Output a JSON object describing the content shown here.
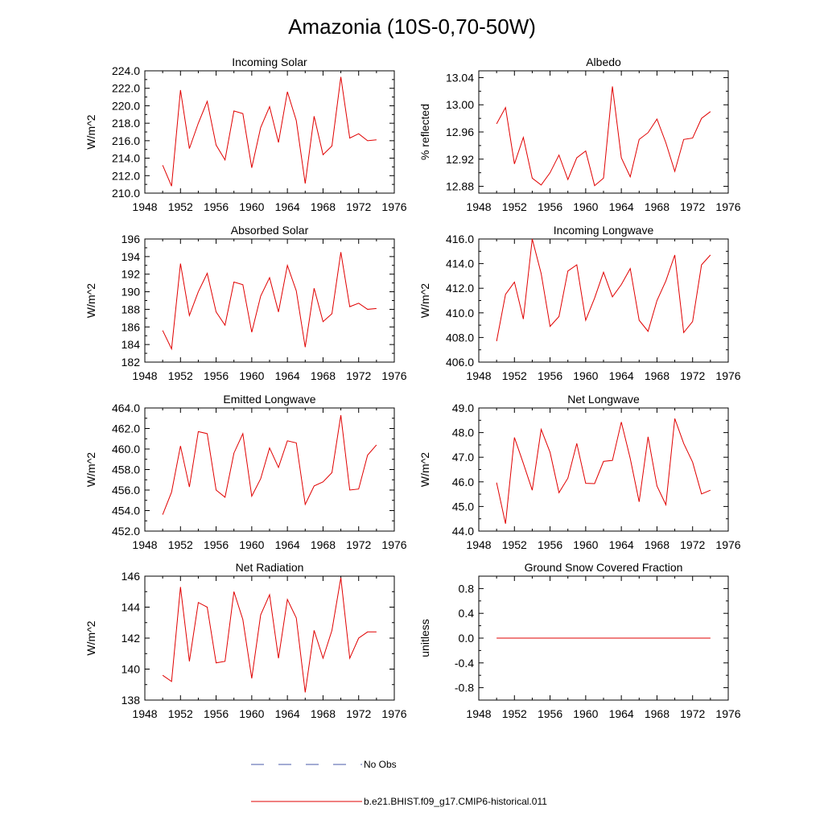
{
  "title": "Amazonia (10S-0,70-50W)",
  "legend": {
    "entries": [
      {
        "label": "No Obs",
        "color": "#4a5aa8",
        "style": "dashed"
      },
      {
        "label": "b.e21.BHIST.f09_g17.CMIP6-historical.011",
        "color": "#e00000",
        "style": "solid"
      }
    ]
  },
  "chart_data": [
    {
      "type": "line",
      "title": "Incoming Solar",
      "ylabel": "W/m^2",
      "xlim": [
        1948,
        1976
      ],
      "xticks": [
        1948,
        1952,
        1956,
        1960,
        1964,
        1968,
        1972,
        1976
      ],
      "ylim": [
        210.0,
        224.0
      ],
      "yticks": [
        "210.0",
        "212.0",
        "214.0",
        "216.0",
        "218.0",
        "220.0",
        "222.0",
        "224.0"
      ],
      "color": "#e00000",
      "x": [
        1950,
        1951,
        1952,
        1953,
        1954,
        1955,
        1956,
        1957,
        1958,
        1959,
        1960,
        1961,
        1962,
        1963,
        1964,
        1965,
        1966,
        1967,
        1968,
        1969,
        1970,
        1971,
        1972,
        1973,
        1974
      ],
      "y": [
        213.2,
        210.8,
        221.8,
        215.1,
        218.0,
        220.5,
        215.5,
        213.8,
        219.4,
        219.1,
        212.9,
        217.5,
        219.9,
        215.8,
        221.6,
        218.3,
        211.1,
        218.8,
        214.4,
        215.4,
        223.3,
        216.3,
        216.8,
        216.0,
        216.1
      ]
    },
    {
      "type": "line",
      "title": "Albedo",
      "ylabel": "% reflected",
      "xlim": [
        1948,
        1976
      ],
      "xticks": [
        1948,
        1952,
        1956,
        1960,
        1964,
        1968,
        1972,
        1976
      ],
      "ylim": [
        12.87,
        13.05
      ],
      "yticks": [
        "12.88",
        "12.92",
        "12.96",
        "13.00",
        "13.04"
      ],
      "color": "#e00000",
      "x": [
        1950,
        1951,
        1952,
        1953,
        1954,
        1955,
        1956,
        1957,
        1958,
        1959,
        1960,
        1961,
        1962,
        1963,
        1964,
        1965,
        1966,
        1967,
        1968,
        1969,
        1970,
        1971,
        1972,
        1973,
        1974
      ],
      "y": [
        12.972,
        12.996,
        12.913,
        12.952,
        12.892,
        12.882,
        12.9,
        12.926,
        12.89,
        12.922,
        12.932,
        12.881,
        12.892,
        13.027,
        12.922,
        12.894,
        12.949,
        12.959,
        12.979,
        12.944,
        12.902,
        12.949,
        12.951,
        12.98,
        12.99
      ]
    },
    {
      "type": "line",
      "title": "Absorbed Solar",
      "ylabel": "W/m^2",
      "xlim": [
        1948,
        1976
      ],
      "xticks": [
        1948,
        1952,
        1956,
        1960,
        1964,
        1968,
        1972,
        1976
      ],
      "ylim": [
        182,
        196
      ],
      "yticks": [
        "182",
        "184",
        "186",
        "188",
        "190",
        "192",
        "194",
        "196"
      ],
      "color": "#e00000",
      "x": [
        1950,
        1951,
        1952,
        1953,
        1954,
        1955,
        1956,
        1957,
        1958,
        1959,
        1960,
        1961,
        1962,
        1963,
        1964,
        1965,
        1966,
        1967,
        1968,
        1969,
        1970,
        1971,
        1972,
        1973,
        1974
      ],
      "y": [
        185.6,
        183.5,
        193.2,
        187.3,
        190.0,
        192.1,
        187.7,
        186.2,
        191.1,
        190.8,
        185.4,
        189.5,
        191.6,
        187.7,
        193.0,
        190.1,
        183.7,
        190.4,
        186.6,
        187.5,
        194.5,
        188.3,
        188.7,
        188.0,
        188.1
      ]
    },
    {
      "type": "line",
      "title": "Incoming Longwave",
      "ylabel": "W/m^2",
      "xlim": [
        1948,
        1976
      ],
      "xticks": [
        1948,
        1952,
        1956,
        1960,
        1964,
        1968,
        1972,
        1976
      ],
      "ylim": [
        406.0,
        416.0
      ],
      "yticks": [
        "406.0",
        "408.0",
        "410.0",
        "412.0",
        "414.0",
        "416.0"
      ],
      "color": "#e00000",
      "x": [
        1950,
        1951,
        1952,
        1953,
        1954,
        1955,
        1956,
        1957,
        1958,
        1959,
        1960,
        1961,
        1962,
        1963,
        1964,
        1965,
        1966,
        1967,
        1968,
        1969,
        1970,
        1971,
        1972,
        1973,
        1974
      ],
      "y": [
        407.7,
        411.5,
        412.5,
        409.5,
        416.0,
        413.2,
        408.9,
        409.7,
        413.4,
        413.9,
        409.4,
        411.2,
        413.3,
        411.3,
        412.3,
        413.6,
        409.4,
        408.5,
        411.0,
        412.6,
        414.7,
        408.4,
        409.3,
        413.9,
        414.7
      ]
    },
    {
      "type": "line",
      "title": "Emitted Longwave",
      "ylabel": "W/m^2",
      "xlim": [
        1948,
        1976
      ],
      "xticks": [
        1948,
        1952,
        1956,
        1960,
        1964,
        1968,
        1972,
        1976
      ],
      "ylim": [
        452.0,
        464.0
      ],
      "yticks": [
        "452.0",
        "454.0",
        "456.0",
        "458.0",
        "460.0",
        "462.0",
        "464.0"
      ],
      "color": "#e00000",
      "x": [
        1950,
        1951,
        1952,
        1953,
        1954,
        1955,
        1956,
        1957,
        1958,
        1959,
        1960,
        1961,
        1962,
        1963,
        1964,
        1965,
        1966,
        1967,
        1968,
        1969,
        1970,
        1971,
        1972,
        1973,
        1974
      ],
      "y": [
        453.6,
        455.8,
        460.3,
        456.3,
        461.7,
        461.5,
        456.0,
        455.3,
        459.6,
        461.5,
        455.4,
        457.1,
        460.1,
        458.2,
        460.8,
        460.6,
        454.6,
        456.4,
        456.8,
        457.7,
        463.3,
        456.0,
        456.1,
        459.4,
        460.4
      ]
    },
    {
      "type": "line",
      "title": "Net Longwave",
      "ylabel": "W/m^2",
      "xlim": [
        1948,
        1976
      ],
      "xticks": [
        1948,
        1952,
        1956,
        1960,
        1964,
        1968,
        1972,
        1976
      ],
      "ylim": [
        44.0,
        49.0
      ],
      "yticks": [
        "44.0",
        "45.0",
        "46.0",
        "47.0",
        "48.0",
        "49.0"
      ],
      "color": "#e00000",
      "x": [
        1950,
        1951,
        1952,
        1953,
        1954,
        1955,
        1956,
        1957,
        1958,
        1959,
        1960,
        1961,
        1962,
        1963,
        1964,
        1965,
        1966,
        1967,
        1968,
        1969,
        1970,
        1971,
        1972,
        1973,
        1974
      ],
      "y": [
        45.97,
        44.3,
        47.8,
        46.75,
        45.66,
        48.13,
        47.2,
        45.56,
        46.15,
        47.56,
        45.94,
        45.93,
        46.83,
        46.87,
        48.43,
        46.95,
        45.19,
        47.83,
        45.83,
        45.07,
        48.57,
        47.56,
        46.8,
        45.51,
        45.66
      ]
    },
    {
      "type": "line",
      "title": "Net Radiation",
      "ylabel": "W/m^2",
      "xlim": [
        1948,
        1976
      ],
      "xticks": [
        1948,
        1952,
        1956,
        1960,
        1964,
        1968,
        1972,
        1976
      ],
      "ylim": [
        138,
        146
      ],
      "yticks": [
        "138",
        "140",
        "142",
        "144",
        "146"
      ],
      "color": "#e00000",
      "x": [
        1950,
        1951,
        1952,
        1953,
        1954,
        1955,
        1956,
        1957,
        1958,
        1959,
        1960,
        1961,
        1962,
        1963,
        1964,
        1965,
        1966,
        1967,
        1968,
        1969,
        1970,
        1971,
        1972,
        1973,
        1974
      ],
      "y": [
        139.6,
        139.2,
        145.3,
        140.5,
        144.3,
        144.0,
        140.4,
        140.5,
        145.0,
        143.2,
        139.4,
        143.5,
        144.8,
        140.7,
        144.5,
        143.3,
        138.5,
        142.5,
        140.7,
        142.5,
        145.9,
        140.7,
        142.0,
        142.4,
        142.4
      ]
    },
    {
      "type": "line",
      "title": "Ground Snow Covered Fraction",
      "ylabel": "unitless",
      "xlim": [
        1948,
        1976
      ],
      "xticks": [
        1948,
        1952,
        1956,
        1960,
        1964,
        1968,
        1972,
        1976
      ],
      "ylim": [
        -1.0,
        1.0
      ],
      "yticks": [
        "-0.8",
        "-0.4",
        "0.0",
        "0.4",
        "0.8"
      ],
      "color": "#e00000",
      "x": [
        1950,
        1974
      ],
      "y": [
        0.0,
        0.0
      ]
    }
  ]
}
